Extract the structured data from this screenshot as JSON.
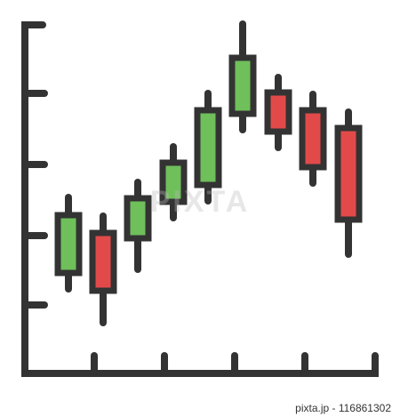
{
  "watermark": "PIXTA",
  "footer": "pixta.jp - 116861302"
}
